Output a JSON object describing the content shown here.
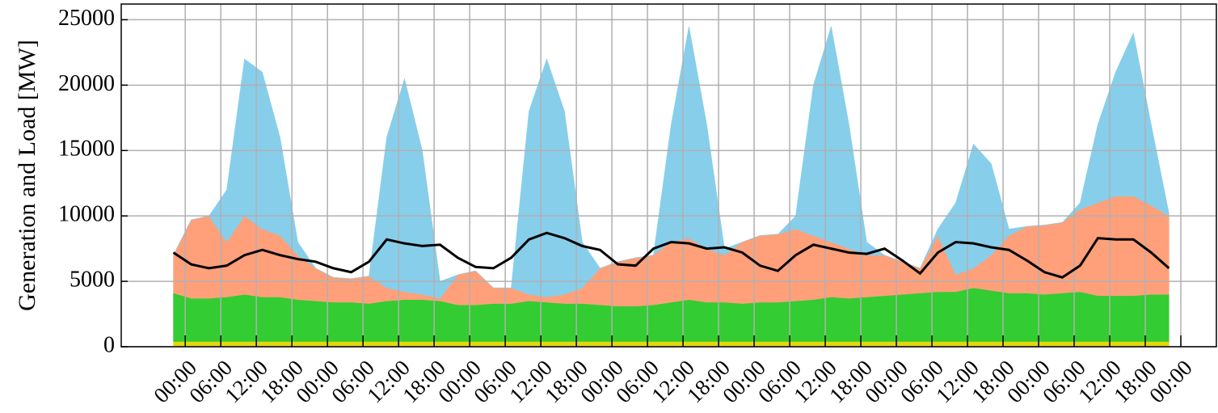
{
  "chart_data": {
    "type": "area",
    "y_label": "Generation and Load [MW]",
    "x": [
      -2,
      1,
      4,
      7,
      10,
      13,
      16,
      19,
      22,
      25,
      28,
      31,
      34,
      37,
      40,
      43,
      46,
      49,
      52,
      55,
      58,
      61,
      64,
      67,
      70,
      73,
      76,
      79,
      82,
      85,
      88,
      91,
      94,
      97,
      100,
      103,
      106,
      109,
      112,
      115,
      118,
      121,
      124,
      127,
      130,
      133,
      136,
      139,
      142,
      145,
      148,
      151,
      154,
      157,
      160,
      163,
      166
    ],
    "series": [
      {
        "color": "#e3d70e",
        "values": [
          400,
          400,
          400,
          400,
          400,
          400,
          400,
          400,
          400,
          400,
          400,
          400,
          400,
          400,
          400,
          400,
          400,
          400,
          400,
          400,
          400,
          400,
          400,
          400,
          400,
          400,
          400,
          400,
          400,
          400,
          400,
          400,
          400,
          400,
          400,
          400,
          400,
          400,
          400,
          400,
          400,
          400,
          400,
          400,
          400,
          400,
          400,
          400,
          400,
          400,
          400,
          400,
          400,
          400,
          400,
          400,
          400
        ]
      },
      {
        "color": "#33cc33",
        "values": [
          3700,
          3300,
          3300,
          3400,
          3600,
          3400,
          3400,
          3200,
          3100,
          3000,
          3000,
          2900,
          3100,
          3200,
          3200,
          3100,
          2800,
          2800,
          2900,
          2900,
          3100,
          3000,
          2900,
          2900,
          2800,
          2700,
          2700,
          2800,
          3000,
          3200,
          3000,
          3000,
          2900,
          3000,
          3000,
          3100,
          3200,
          3400,
          3300,
          3400,
          3500,
          3600,
          3700,
          3800,
          3800,
          4100,
          3900,
          3700,
          3700,
          3600,
          3700,
          3800,
          3500,
          3500,
          3500,
          3600,
          3600
        ]
      },
      {
        "color": "#ffa07a",
        "values": [
          2900,
          6000,
          6300,
          4200,
          6000,
          5200,
          4700,
          3400,
          2500,
          1900,
          1800,
          2100,
          1000,
          600,
          400,
          200,
          2300,
          2600,
          1200,
          1200,
          500,
          400,
          700,
          1200,
          2800,
          3400,
          3700,
          3800,
          4600,
          4700,
          4100,
          3600,
          4700,
          5100,
          5200,
          5500,
          4900,
          4200,
          3800,
          3200,
          3100,
          2500,
          1900,
          4300,
          1300,
          1500,
          2700,
          4400,
          5100,
          5300,
          5400,
          6300,
          7100,
          7600,
          7600,
          6800,
          6000
        ]
      },
      {
        "color": "#87ceeb",
        "values": [
          0,
          0,
          0,
          4000,
          12000,
          12000,
          7500,
          1000,
          0,
          0,
          0,
          0,
          11500,
          16300,
          11000,
          1300,
          0,
          0,
          0,
          0,
          14000,
          18200,
          14000,
          3500,
          0,
          0,
          0,
          0,
          9000,
          16200,
          9500,
          500,
          0,
          0,
          0,
          1000,
          11500,
          16500,
          9500,
          1000,
          0,
          0,
          0,
          500,
          5500,
          9500,
          7000,
          500,
          0,
          0,
          0,
          500,
          6000,
          9500,
          12500,
          6200,
          200
        ]
      },
      {
        "type": "line",
        "color": "#000000",
        "values": [
          7200,
          6300,
          6000,
          6200,
          7000,
          7400,
          7000,
          6700,
          6500,
          6000,
          5700,
          6500,
          8200,
          7900,
          7700,
          7800,
          6800,
          6100,
          6000,
          6800,
          8200,
          8700,
          8300,
          7700,
          7400,
          6300,
          6200,
          7500,
          8000,
          7900,
          7500,
          7600,
          7200,
          6200,
          5800,
          7000,
          7800,
          7500,
          7200,
          7100,
          7500,
          6600,
          5600,
          7200,
          8000,
          7900,
          7600,
          7400,
          6600,
          5700,
          5300,
          6200,
          8300,
          8200,
          8200,
          7200,
          6000
        ]
      }
    ],
    "xlim": [
      -10.8,
      174
    ],
    "ylim": [
      0,
      26200
    ],
    "xticks": [
      {
        "value": 0,
        "label": "00:00"
      },
      {
        "value": 6,
        "label": "06:00"
      },
      {
        "value": 12,
        "label": "12:00"
      },
      {
        "value": 18,
        "label": "18:00"
      },
      {
        "value": 24,
        "label": "00:00"
      },
      {
        "value": 30,
        "label": "06:00"
      },
      {
        "value": 36,
        "label": "12:00"
      },
      {
        "value": 42,
        "label": "18:00"
      },
      {
        "value": 48,
        "label": "00:00"
      },
      {
        "value": 54,
        "label": "06:00"
      },
      {
        "value": 60,
        "label": "12:00"
      },
      {
        "value": 66,
        "label": "18:00"
      },
      {
        "value": 72,
        "label": "00:00"
      },
      {
        "value": 78,
        "label": "06:00"
      },
      {
        "value": 84,
        "label": "12:00"
      },
      {
        "value": 90,
        "label": "18:00"
      },
      {
        "value": 96,
        "label": "00:00"
      },
      {
        "value": 102,
        "label": "06:00"
      },
      {
        "value": 108,
        "label": "12:00"
      },
      {
        "value": 114,
        "label": "18:00"
      },
      {
        "value": 120,
        "label": "00:00"
      },
      {
        "value": 126,
        "label": "06:00"
      },
      {
        "value": 132,
        "label": "12:00"
      },
      {
        "value": 138,
        "label": "18:00"
      },
      {
        "value": 144,
        "label": "00:00"
      },
      {
        "value": 150,
        "label": "06:00"
      },
      {
        "value": 156,
        "label": "12:00"
      },
      {
        "value": 162,
        "label": "18:00"
      },
      {
        "value": 168,
        "label": "00:00"
      }
    ],
    "yticks": [
      0,
      5000,
      10000,
      15000,
      20000,
      25000
    ],
    "grid": true
  }
}
